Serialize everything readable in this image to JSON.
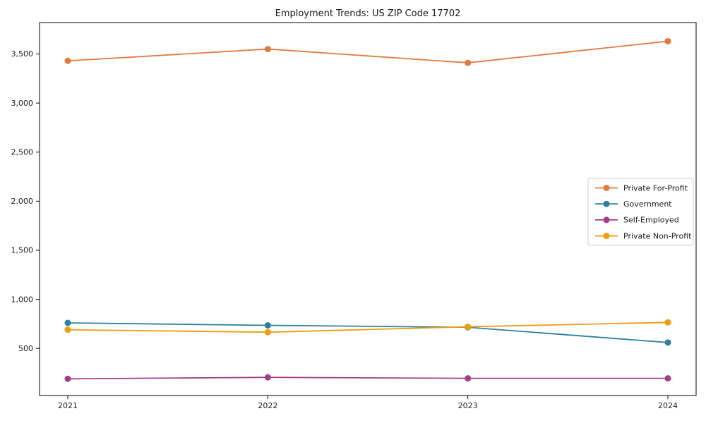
{
  "chart_data": {
    "type": "line",
    "title": "Employment Trends: US ZIP Code 17702",
    "categories": [
      "2021",
      "2022",
      "2023",
      "2024"
    ],
    "x": [
      2021,
      2022,
      2023,
      2024
    ],
    "series": [
      {
        "name": "Private For-Profit",
        "color": "#E2793E",
        "values": [
          3430,
          3550,
          3410,
          3630
        ]
      },
      {
        "name": "Government",
        "color": "#2E7FA0",
        "values": [
          760,
          735,
          715,
          560
        ]
      },
      {
        "name": "Self-Employed",
        "color": "#A23E86",
        "values": [
          190,
          205,
          195,
          195
        ]
      },
      {
        "name": "Private Non-Profit",
        "color": "#EF9C0E",
        "values": [
          690,
          665,
          720,
          765
        ]
      }
    ],
    "xlabel": "",
    "ylabel": "",
    "ylim": [
      20,
      3820
    ],
    "yticks": [
      500,
      1000,
      1500,
      2000,
      2500,
      3000,
      3500
    ],
    "ytick_labels": [
      "500",
      "1,000",
      "1,500",
      "2,000",
      "2,500",
      "3,000",
      "3,500"
    ],
    "grid": false,
    "legend_position": "center-right",
    "frame_color": "#000000",
    "legend_border_color": "#cccccc",
    "background_color": "#ffffff"
  }
}
